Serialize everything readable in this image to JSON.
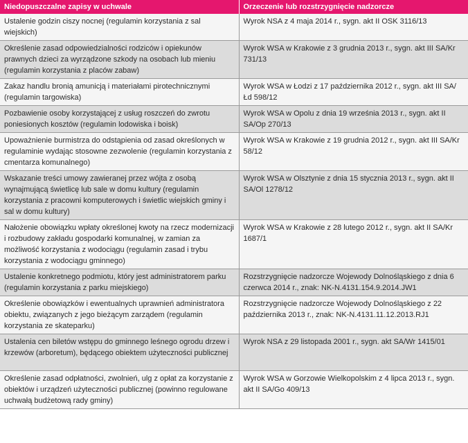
{
  "table": {
    "headers": [
      "Niedopuszczalne zapisy w uchwale",
      "Orzeczenie lub rozstrzygnięcie nadzorcze"
    ],
    "rows": [
      [
        "Ustalenie godzin ciszy nocnej (regulamin korzystania z sal wiejskich)",
        "Wyrok NSA z 4 maja 2014 r., sygn. akt  II OSK 3116/13"
      ],
      [
        "Określenie zasad odpowiedzialności rodziców i opiekunów prawnych dzieci za wyrządzone szkody na osobach lub mieniu (regulamin korzystania z placów zabaw)",
        "Wyrok WSA w Krakowie z 3 grudnia 2013 r., sygn. akt III SA/Kr 731/13"
      ],
      [
        "Zakaz handlu bronią amunicją i materiałami pirotechnicznymi (regulamin targowiska)",
        "Wyrok WSA w Łodzi z 17 października 2012 r., sygn. akt III SA/Łd 598/12"
      ],
      [
        "Pozbawienie osoby korzystającej z usług roszczeń do zwrotu poniesionych kosztów (regulamin lodowiska i boisk)",
        "Wyrok WSA w Opolu z dnia 19 września 2013 r., sygn. akt II SA/Op 270/13"
      ],
      [
        "Upoważnienie burmistrza do odstąpienia od zasad określonych w regulaminie wydając stosowne zezwolenie (regulamin korzystania z cmentarza komunalnego)",
        "Wyrok WSA w Krakowie z  19 grudnia 2012 r., sygn. akt III SA/Kr 58/12"
      ],
      [
        "Wskazanie treści umowy zawieranej przez wójta z osobą wynajmującą świetlicę lub sale w domu kultury (regulamin korzystania z pracowni komputerowych i świetlic wiejskich gminy i sal w domu kultury)",
        "Wyrok WSA w Olsztynie z dnia 15 stycznia 2013 r., sygn. akt  II SA/Ol 1278/12"
      ],
      [
        "Nałożenie obowiązku wpłaty określonej kwoty na rzecz modernizacji i rozbudowy zakładu gospodarki komunalnej, w zamian za możliwość korzystania z wodociągu (regulamin zasad i trybu korzystania z wodociągu gminnego)",
        "Wyrok WSA w Krakowie z  28 lutego 2012 r., sygn. akt  II SA/Kr 1687/1"
      ],
      [
        "Ustalenie konkretnego podmiotu, który jest  administratorem parku (regulamin korzystania z parku miejskiego)",
        "Rozstrzygnięcie nadzorcze Wojewody Dolnośląskiego z dnia 6 czerwca 2014 r., znak: NK-N.4131.154.9.2014.JW1"
      ],
      [
        " Określenie obowiązków i ewentualnych uprawnień administratora obiektu, związanych z jego bieżącym zarządem (regulamin korzystania ze skateparku)",
        "Rozstrzygnięcie nadzorcze Wojewody Dolnośląskiego z 22 października 2013 r.,  znak: NK-N.4131.11.12.2013.RJ1"
      ],
      [
        "Ustalenia cen biletów wstępu do gminnego leśnego ogrodu drzew i krzewów (arboretum), będącego obiektem użyteczności publicznej",
        "Wyrok NSA z 29 listopada 2001 r., sygn. akt SA/Wr 1415/01"
      ],
      [
        "Określenie zasad odpłatności, zwolnień, ulg z opłat za korzystanie z obiektów i urządzeń użyteczności publicznej (powinno regulowane uchwałą budżetową rady gminy)",
        "Wyrok WSA w Gorzowie Wielkopolskim z 4 lipca 2013 r., sygn. akt II SA/Go 409/13"
      ]
    ]
  },
  "colors": {
    "header_bg": "#e5176e",
    "header_text": "#ffffff",
    "row_light": "#f5f5f5",
    "row_dark": "#dcdcdc"
  }
}
